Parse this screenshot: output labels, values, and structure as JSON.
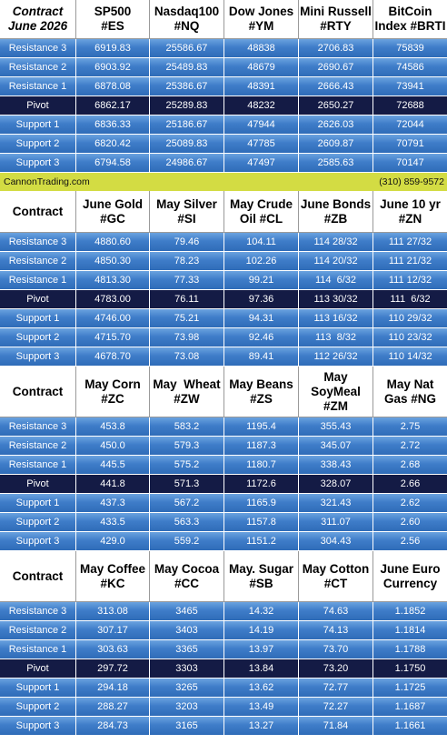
{
  "sections": [
    {
      "header": {
        "first": [
          "Contract",
          "June 2026"
        ],
        "columns": [
          [
            "SP500",
            "#ES"
          ],
          [
            "Nasdaq100",
            "#NQ"
          ],
          [
            "Dow Jones",
            "#YM"
          ],
          [
            "Mini Russell",
            "#RTY"
          ],
          [
            "BitCoin",
            "Index #BRTI"
          ]
        ]
      },
      "rows": [
        {
          "label": "Resistance 3",
          "values": [
            "6919.83",
            "25586.67",
            "48838",
            "2706.83",
            "75839"
          ]
        },
        {
          "label": "Resistance 2",
          "values": [
            "6903.92",
            "25489.83",
            "48679",
            "2690.67",
            "74586"
          ]
        },
        {
          "label": "Resistance 1",
          "values": [
            "6878.08",
            "25386.67",
            "48391",
            "2666.43",
            "73941"
          ]
        },
        {
          "label": "Pivot",
          "values": [
            "6862.17",
            "25289.83",
            "48232",
            "2650.27",
            "72688"
          ]
        },
        {
          "label": "Support 1",
          "values": [
            "6836.33",
            "25186.67",
            "47944",
            "2626.03",
            "72044"
          ]
        },
        {
          "label": "Support 2",
          "values": [
            "6820.42",
            "25089.83",
            "47785",
            "2609.87",
            "70791"
          ]
        },
        {
          "label": "Support 3",
          "values": [
            "6794.58",
            "24986.67",
            "47497",
            "2585.63",
            "70147"
          ]
        }
      ]
    },
    {
      "header": {
        "first": [
          "Contract"
        ],
        "columns": [
          [
            "June Gold",
            "#GC"
          ],
          [
            "May Silver",
            "#SI"
          ],
          [
            "May Crude",
            "Oil #CL"
          ],
          [
            "June Bonds",
            "#ZB"
          ],
          [
            "June 10 yr",
            "#ZN"
          ]
        ]
      },
      "rows": [
        {
          "label": "Resistance 3",
          "values": [
            "4880.60",
            "79.46",
            "104.11",
            "114 28/32",
            "111 27/32"
          ]
        },
        {
          "label": "Resistance 2",
          "values": [
            "4850.30",
            "78.23",
            "102.26",
            "114 20/32",
            "111 21/32"
          ]
        },
        {
          "label": "Resistance 1",
          "values": [
            "4813.30",
            "77.33",
            "99.21",
            "114  6/32",
            "111 12/32"
          ]
        },
        {
          "label": "Pivot",
          "values": [
            "4783.00",
            "76.11",
            "97.36",
            "113 30/32",
            "111  6/32"
          ]
        },
        {
          "label": "Support 1",
          "values": [
            "4746.00",
            "75.21",
            "94.31",
            "113 16/32",
            "110 29/32"
          ]
        },
        {
          "label": "Support 2",
          "values": [
            "4715.70",
            "73.98",
            "92.46",
            "113  8/32",
            "110 23/32"
          ]
        },
        {
          "label": "Support 3",
          "values": [
            "4678.70",
            "73.08",
            "89.41",
            "112 26/32",
            "110 14/32"
          ]
        }
      ]
    },
    {
      "header": {
        "first": [
          "Contract"
        ],
        "columns": [
          [
            "May Corn",
            "#ZC"
          ],
          [
            "May  Wheat",
            "#ZW"
          ],
          [
            "May Beans",
            "#ZS"
          ],
          [
            "May",
            "SoyMeal",
            "#ZM"
          ],
          [
            "May Nat",
            "Gas #NG"
          ]
        ]
      },
      "rows": [
        {
          "label": "Resistance 3",
          "values": [
            "453.8",
            "583.2",
            "1195.4",
            "355.43",
            "2.75"
          ]
        },
        {
          "label": "Resistance 2",
          "values": [
            "450.0",
            "579.3",
            "1187.3",
            "345.07",
            "2.72"
          ]
        },
        {
          "label": "Resistance 1",
          "values": [
            "445.5",
            "575.2",
            "1180.7",
            "338.43",
            "2.68"
          ]
        },
        {
          "label": "Pivot",
          "values": [
            "441.8",
            "571.3",
            "1172.6",
            "328.07",
            "2.66"
          ]
        },
        {
          "label": "Support 1",
          "values": [
            "437.3",
            "567.2",
            "1165.9",
            "321.43",
            "2.62"
          ]
        },
        {
          "label": "Support 2",
          "values": [
            "433.5",
            "563.3",
            "1157.8",
            "311.07",
            "2.60"
          ]
        },
        {
          "label": "Support 3",
          "values": [
            "429.0",
            "559.2",
            "1151.2",
            "304.43",
            "2.56"
          ]
        }
      ]
    },
    {
      "header": {
        "first": [
          "Contract"
        ],
        "columns": [
          [
            "May Coffee",
            "#KC"
          ],
          [
            "May Cocoa",
            "#CC"
          ],
          [
            "May. Sugar",
            "#SB"
          ],
          [
            "May Cotton",
            "#CT"
          ],
          [
            "June Euro",
            "Currency"
          ]
        ]
      },
      "rows": [
        {
          "label": "Resistance 3",
          "values": [
            "313.08",
            "3465",
            "14.32",
            "74.63",
            "1.1852"
          ]
        },
        {
          "label": "Resistance 2",
          "values": [
            "307.17",
            "3403",
            "14.19",
            "74.13",
            "1.1814"
          ]
        },
        {
          "label": "Resistance 1",
          "values": [
            "303.63",
            "3365",
            "13.97",
            "73.70",
            "1.1788"
          ]
        },
        {
          "label": "Pivot",
          "values": [
            "297.72",
            "3303",
            "13.84",
            "73.20",
            "1.1750"
          ]
        },
        {
          "label": "Support 1",
          "values": [
            "294.18",
            "3265",
            "13.62",
            "72.77",
            "1.1725"
          ]
        },
        {
          "label": "Support 2",
          "values": [
            "288.27",
            "3203",
            "13.49",
            "72.27",
            "1.1687"
          ]
        },
        {
          "label": "Support 3",
          "values": [
            "284.73",
            "3165",
            "13.27",
            "71.84",
            "1.1661"
          ]
        }
      ]
    }
  ],
  "banner": {
    "site": "CannonTrading.com",
    "phone": "(310) 859-9572"
  },
  "colors": {
    "row_gradient_top": "#6aa2df",
    "row_gradient_bottom": "#2f6cb8",
    "pivot": "#141b45",
    "banner": "#d3dc43"
  }
}
